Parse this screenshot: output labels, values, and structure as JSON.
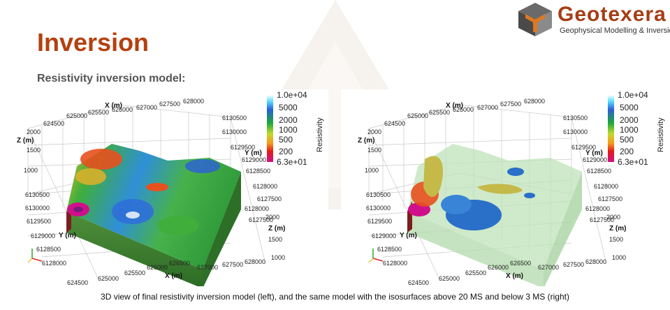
{
  "slide": {
    "title": "Inversion",
    "subtitle": "Resistivity inversion model:",
    "caption": "3D view of final resistivity inversion model (left), and the same model with the isosurfaces above 20 MS and below 3 MS (right)"
  },
  "logo": {
    "name": "Geotexera",
    "tagline": "Geophysical Modelling & Inversion",
    "colors": {
      "brand": "#a63d14",
      "cube_top": "#5a5a5a",
      "cube_accent": "#e07820"
    }
  },
  "colorbar": {
    "title": "Resistivity",
    "labels": [
      "1.0e+04",
      "5000",
      "2000",
      "1000",
      "500",
      "200",
      "6.3e+01"
    ]
  },
  "axes": {
    "x_title": "X (m)",
    "y_title": "Y (m)",
    "z_title": "Z (m)",
    "x_ticks_top": [
      "624500",
      "625000",
      "625500",
      "626000",
      "626500",
      "627000",
      "627500",
      "628000"
    ],
    "x_ticks_bottom": [
      "624500",
      "625000",
      "625500",
      "626000",
      "626500",
      "627000",
      "627500",
      "628000"
    ],
    "y_ticks_left": [
      "6130500",
      "6130000",
      "6129500",
      "6129000",
      "6128500",
      "6128000"
    ],
    "y_ticks_right": [
      "6130500",
      "6130000",
      "6129500",
      "6129000",
      "6128500",
      "6128000",
      "6127500"
    ],
    "y_ticks_right_mid": [
      "6128000",
      "6127500"
    ],
    "z_ticks_left": [
      "2000",
      "1500",
      "1000"
    ],
    "z_ticks_right": [
      "2000",
      "1500",
      "1000"
    ]
  },
  "colors": {
    "title": "#b4410f",
    "subtitle": "#555555"
  }
}
